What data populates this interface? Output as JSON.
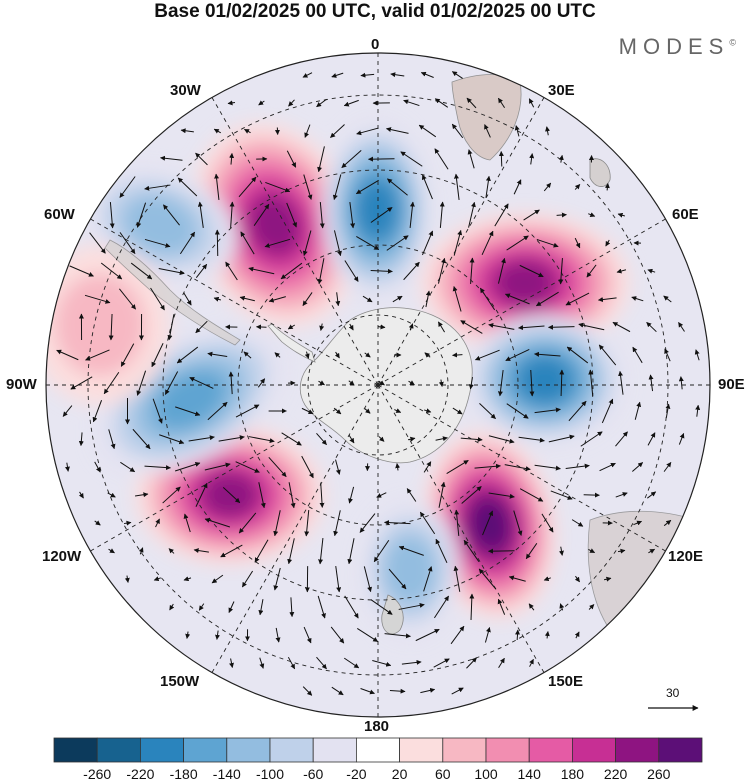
{
  "header": {
    "title": "Base 01/02/2025 00 UTC, valid 01/02/2025 00 UTC",
    "brand": "MODES"
  },
  "map": {
    "projection": "south-polar-stereographic",
    "longitude_labels": {
      "lon0": "0",
      "lon30e": "30E",
      "lon60e": "60E",
      "lon90e": "90E",
      "lon120e": "120E",
      "lon150e": "150E",
      "lon180": "180",
      "lon150w": "150W",
      "lon120w": "120W",
      "lon90w": "90W",
      "lon60w": "60W",
      "lon30w": "30W"
    },
    "vector_reference": "30"
  },
  "anomaly_fields": [
    {
      "sign": "positive",
      "name": "high-anomaly-30w-50s",
      "peak": 220
    },
    {
      "sign": "negative",
      "name": "low-anomaly-0-55s",
      "peak": -180
    },
    {
      "sign": "positive",
      "name": "high-anomaly-45e-50s",
      "peak": 220
    },
    {
      "sign": "negative",
      "name": "low-anomaly-90e-55s",
      "peak": -180
    },
    {
      "sign": "positive",
      "name": "high-anomaly-145e-50s",
      "peak": 260
    },
    {
      "sign": "negative",
      "name": "low-anomaly-170e-55s",
      "peak": -100
    },
    {
      "sign": "positive",
      "name": "high-anomaly-120w-45s",
      "peak": 220
    },
    {
      "sign": "negative",
      "name": "low-anomaly-95w-50s",
      "peak": -140
    },
    {
      "sign": "negative",
      "name": "low-anomaly-45w-40s",
      "peak": -100
    },
    {
      "sign": "positive",
      "name": "weak-high-anomaly-80w-30s",
      "peak": 60
    }
  ],
  "colorbar": {
    "labels": [
      "-260",
      "-220",
      "-180",
      "-140",
      "-100",
      "-60",
      "-20",
      "20",
      "60",
      "100",
      "140",
      "180",
      "220",
      "260"
    ],
    "colors": [
      "#0c3a5c",
      "#17628f",
      "#2a84bd",
      "#5ea4d2",
      "#93bde0",
      "#bfd1ea",
      "#e3e2f1",
      "#ffffff",
      "#fbdede",
      "#f7b8c3",
      "#f28eb1",
      "#e55ba5",
      "#c72f94",
      "#8e1481",
      "#5c0f77"
    ]
  }
}
